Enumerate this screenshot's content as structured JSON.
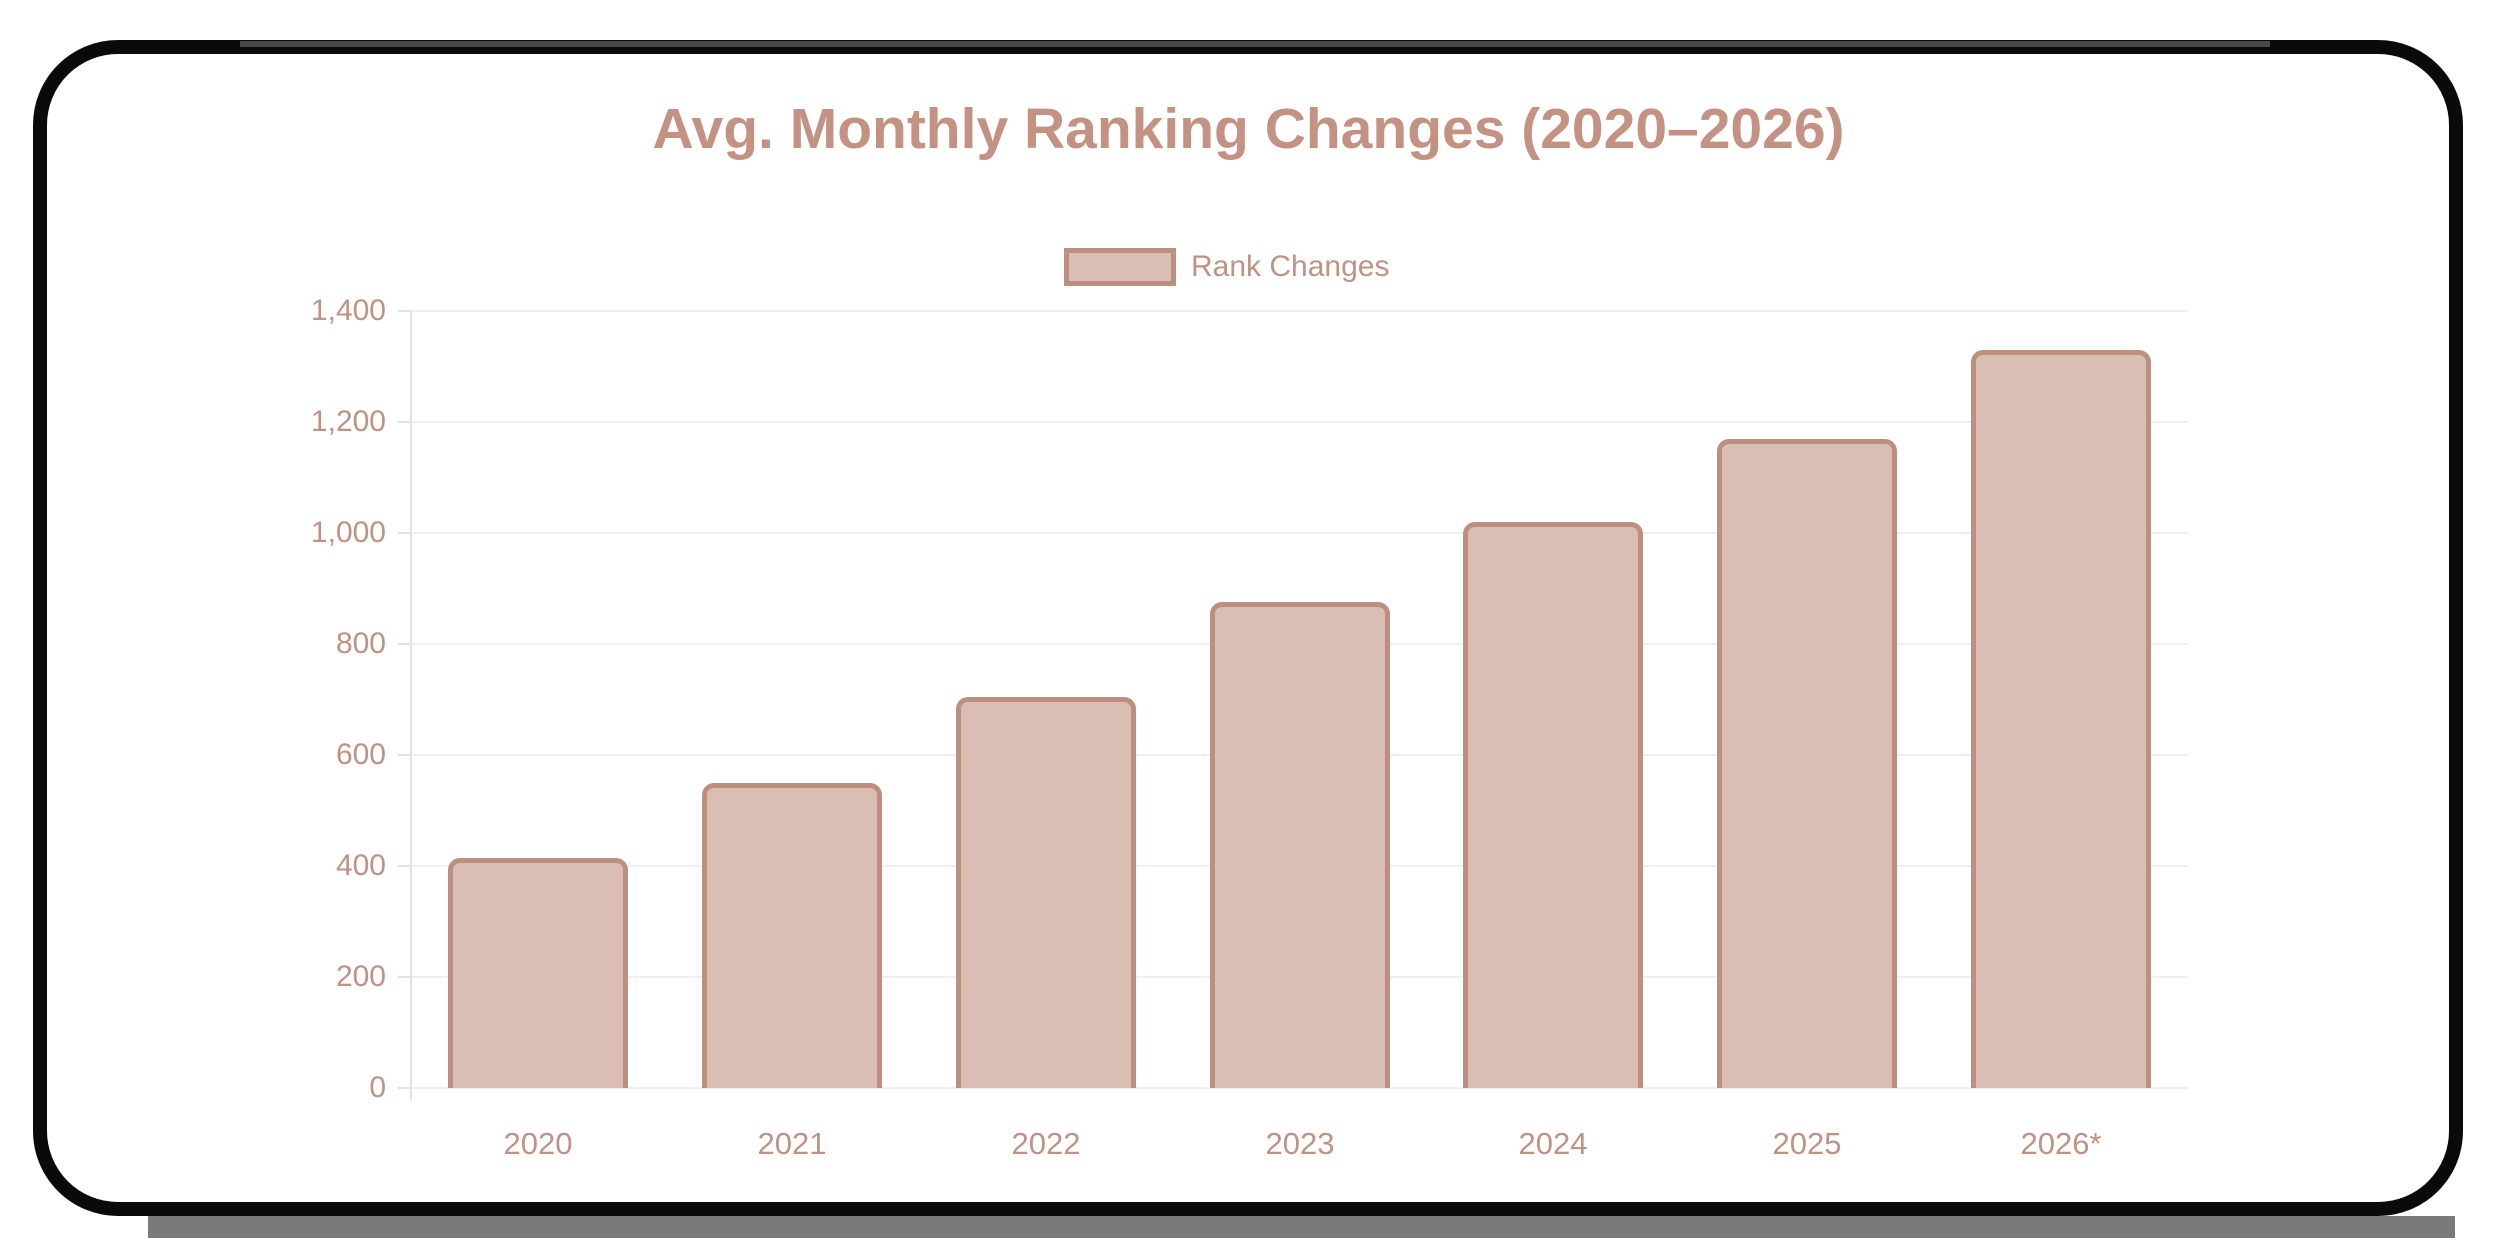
{
  "chart_data": {
    "type": "bar",
    "title": "Avg. Monthly Ranking Changes (2020–2026)",
    "categories": [
      "2020",
      "2021",
      "2022",
      "2023",
      "2024",
      "2025",
      "2026*"
    ],
    "series": [
      {
        "name": "Rank Changes",
        "values": [
          415,
          550,
          705,
          875,
          1020,
          1170,
          1330
        ]
      }
    ],
    "xlabel": "",
    "ylabel": "",
    "ylim": [
      0,
      1400
    ],
    "yticks": [
      0,
      200,
      400,
      600,
      800,
      1000,
      1200,
      1400
    ],
    "ytick_labels": [
      "0",
      "200",
      "400",
      "600",
      "800",
      "1,000",
      "1,200",
      "1,400"
    ],
    "grid": true,
    "legend_position": "top-center",
    "colors": {
      "bar_fill": "#dabeb3",
      "bar_border": "#bd8f7e",
      "title_text": "#c49283",
      "axis_label_text": "#bf9284",
      "gridline": "#f1efed",
      "axis_line": "#e4e2e0",
      "frame_border": "#0a0a0a",
      "frame_shadow": "#7a7a7a"
    }
  }
}
